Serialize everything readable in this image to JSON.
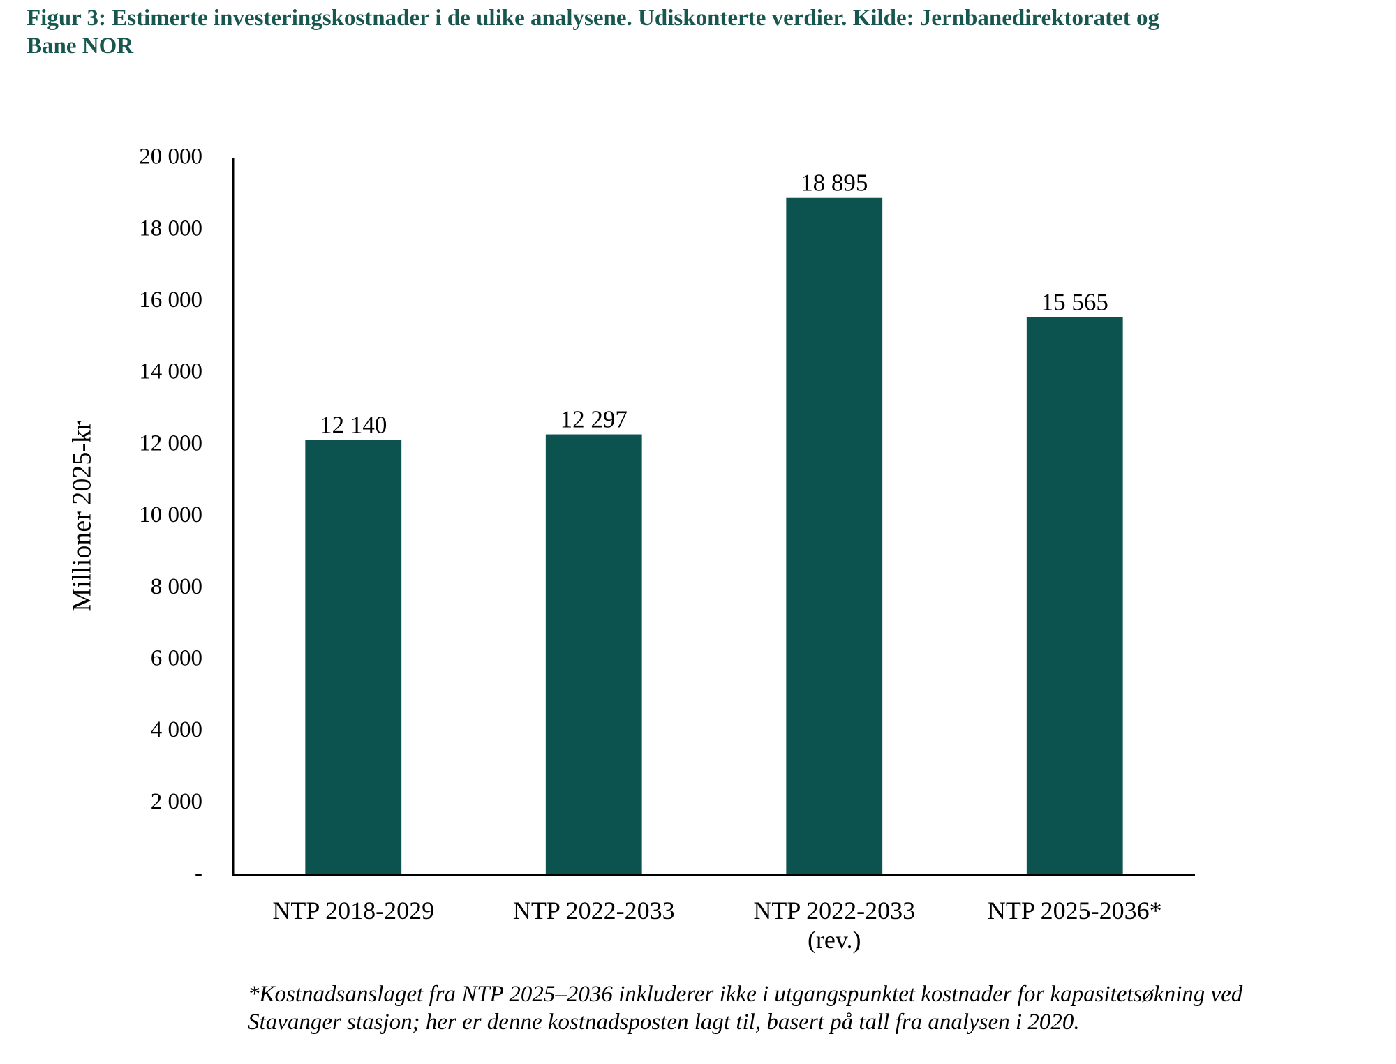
{
  "chart_data": {
    "type": "bar",
    "title": "Figur 3: Estimerte investeringskostnader i de ulike analysene. Udiskonterte verdier. Kilde: Jernbanedirektoratet og Bane NOR",
    "y_label": "Millioner 2025-kr",
    "categories": [
      "NTP 2018-2029",
      "NTP 2022-2033",
      "NTP 2022-2033\n(rev.)",
      "NTP 2025-2036*"
    ],
    "values": [
      12140,
      12297,
      18895,
      15565
    ],
    "value_labels": [
      "12 140",
      "12 297",
      "18 895",
      "15 565"
    ],
    "color": "#0c5350",
    "ylim": [
      0,
      20000
    ],
    "yticks": [
      {
        "value": 0,
        "label": "-"
      },
      {
        "value": 2000,
        "label": "2 000"
      },
      {
        "value": 4000,
        "label": "4 000"
      },
      {
        "value": 6000,
        "label": "6 000"
      },
      {
        "value": 8000,
        "label": "8 000"
      },
      {
        "value": 10000,
        "label": "10 000"
      },
      {
        "value": 12000,
        "label": "12 000"
      },
      {
        "value": 14000,
        "label": "14 000"
      },
      {
        "value": 16000,
        "label": "16 000"
      },
      {
        "value": 18000,
        "label": "18 000"
      },
      {
        "value": 20000,
        "label": "20 000"
      }
    ],
    "grid": false,
    "footnote": "*Kostnadsanslaget fra NTP 2025–2036 inkluderer ikke i utgangspunktet kostnader for kapasitetsøkning ved Stavanger stasjon; her er denne kostnadsposten lagt til, basert på tall fra analysen i 2020."
  }
}
